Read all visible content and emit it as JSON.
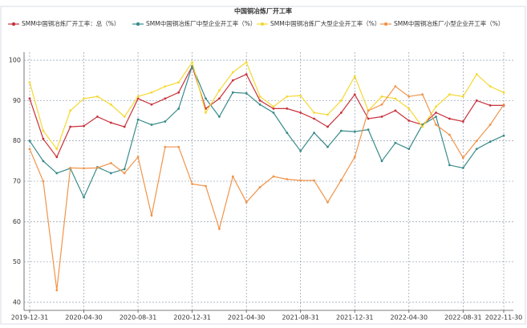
{
  "chart_data": {
    "type": "line",
    "title": "中国铜冶炼厂开工率",
    "categories": [
      "2019-12-31",
      null,
      null,
      null,
      "2020-04-30",
      null,
      null,
      null,
      "2020-08-31",
      null,
      null,
      null,
      "2020-12-31",
      null,
      null,
      null,
      "2021-04-30",
      null,
      null,
      null,
      "2021-08-31",
      null,
      null,
      null,
      "2021-12-31",
      null,
      null,
      null,
      "2022-04-30",
      null,
      null,
      null,
      "2022-08-31",
      null,
      null,
      "2022-11-30"
    ],
    "series": [
      {
        "name": "SMM中国铜冶炼厂开工率：总（%）",
        "color": "#c8323c",
        "values": [
          90.5,
          80.5,
          76,
          83.5,
          83.7,
          86,
          84.5,
          83.5,
          90.5,
          89,
          90.5,
          92,
          98.5,
          88,
          90.5,
          95,
          96.5,
          90,
          88,
          88,
          87,
          85.5,
          83.5,
          87,
          91.5,
          85.5,
          86,
          87.5,
          85,
          84,
          87,
          85.5,
          84.8,
          90,
          88.8,
          88.8
        ]
      },
      {
        "name": "SMM中国铜冶炼厂中型企业开工率（%）",
        "color": "#3a8a8a",
        "values": [
          80,
          75,
          72,
          73.2,
          66,
          73.5,
          72,
          73,
          85.3,
          84,
          84.8,
          88,
          98.5,
          90.5,
          86,
          92,
          91.8,
          89,
          87,
          82,
          77.5,
          82,
          78.5,
          82.5,
          82.3,
          82.8,
          75,
          79.5,
          78,
          84,
          86,
          74,
          73.3,
          78,
          79.8,
          81.3
        ]
      },
      {
        "name": "SMM中国铜冶炼厂大型企业开工率（%）",
        "color": "#f5d833",
        "values": [
          94.5,
          82.5,
          78,
          87.5,
          90.5,
          91,
          89,
          86,
          91,
          92,
          93.5,
          94.5,
          99.5,
          87,
          92.5,
          97,
          99.5,
          91,
          88.5,
          91,
          91.2,
          87,
          86.5,
          90,
          96,
          87.5,
          91,
          90.5,
          88,
          83.5,
          88.5,
          91.5,
          91,
          96.5,
          93.5,
          92
        ]
      },
      {
        "name": "SMM中国铜冶炼厂小型企业开工率（%）",
        "color": "#f0944a",
        "values": [
          78,
          70,
          43,
          73.3,
          73.2,
          73.3,
          74.5,
          72,
          76,
          61.5,
          78.5,
          78.5,
          69.3,
          68.8,
          58.2,
          71.2,
          64.8,
          68.5,
          71.2,
          70.5,
          70.2,
          70.2,
          64.8,
          70.3,
          76,
          87.5,
          89,
          93.5,
          91,
          91.5,
          84,
          81.5,
          75.8,
          80,
          84,
          89
        ]
      }
    ],
    "ylim": [
      38,
      102
    ],
    "yticks": [
      40,
      50,
      60,
      70,
      80,
      90,
      100
    ],
    "grid": true
  }
}
